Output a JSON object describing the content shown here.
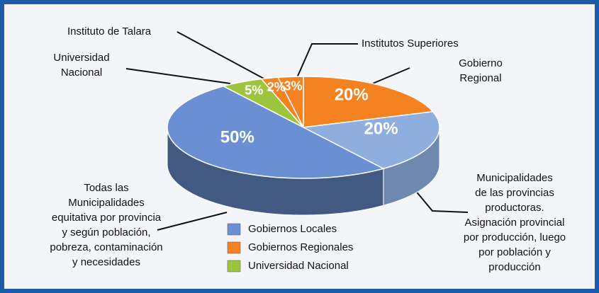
{
  "chart_data": {
    "type": "pie3d",
    "labels": [
      [
        "Gobierno",
        "Regional"
      ],
      [
        "Municipalidades",
        "de las provincias",
        "productoras.",
        "Asignación provincial",
        "por producción, luego",
        "por población y",
        "producción"
      ],
      [
        "Todas las",
        "Municipalidades",
        "equitativa por provincia",
        "y según población,",
        "pobreza, contaminación",
        "y necesidades"
      ],
      [
        "Universidad",
        "Nacional"
      ],
      [
        "Instituto de Talara"
      ],
      [
        "Institutos Superiores"
      ]
    ],
    "values": [
      20,
      20,
      50,
      5,
      2,
      3
    ],
    "value_labels": [
      "20%",
      "20%",
      "50%",
      "5%",
      "2%",
      "3%"
    ],
    "colors": [
      "#f58220",
      "#8eaee0",
      "#6a8fd2",
      "#9cc43c",
      "#f58220",
      "#f58220"
    ],
    "legend": [
      {
        "name": "Gobiernos Locales",
        "color": "#6a8fd2"
      },
      {
        "name": "Gobiernos Regionales",
        "color": "#f58220"
      },
      {
        "name": "Universidad Nacional",
        "color": "#9cc43c"
      }
    ]
  }
}
